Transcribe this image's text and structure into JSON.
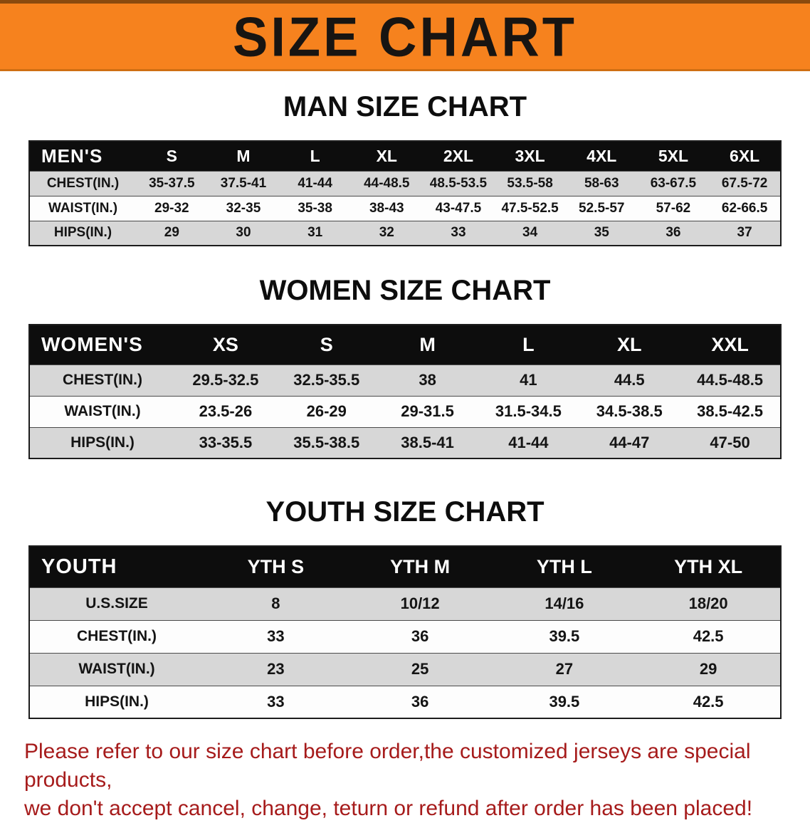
{
  "banner": {
    "title": "SIZE CHART",
    "bg_color": "#f6821e",
    "text_color": "#181512"
  },
  "sections": [
    {
      "id": "men",
      "heading": "MAN SIZE CHART",
      "table": {
        "label": "MEN'S",
        "columns": [
          "S",
          "M",
          "L",
          "XL",
          "2XL",
          "3XL",
          "4XL",
          "5XL",
          "6XL"
        ],
        "rows": [
          {
            "label": "CHEST(IN.)",
            "values": [
              "35-37.5",
              "37.5-41",
              "41-44",
              "44-48.5",
              "48.5-53.5",
              "53.5-58",
              "58-63",
              "63-67.5",
              "67.5-72"
            ]
          },
          {
            "label": "WAIST(IN.)",
            "values": [
              "29-32",
              "32-35",
              "35-38",
              "38-43",
              "43-47.5",
              "47.5-52.5",
              "52.5-57",
              "57-62",
              "62-66.5"
            ]
          },
          {
            "label": "HIPS(IN.)",
            "values": [
              "29",
              "30",
              "31",
              "32",
              "33",
              "34",
              "35",
              "36",
              "37"
            ]
          }
        ]
      }
    },
    {
      "id": "women",
      "heading": "WOMEN SIZE CHART",
      "table": {
        "label": "WOMEN'S",
        "columns": [
          "XS",
          "S",
          "M",
          "L",
          "XL",
          "XXL"
        ],
        "rows": [
          {
            "label": "CHEST(IN.)",
            "values": [
              "29.5-32.5",
              "32.5-35.5",
              "38",
              "41",
              "44.5",
              "44.5-48.5"
            ]
          },
          {
            "label": "WAIST(IN.)",
            "values": [
              "23.5-26",
              "26-29",
              "29-31.5",
              "31.5-34.5",
              "34.5-38.5",
              "38.5-42.5"
            ]
          },
          {
            "label": "HIPS(IN.)",
            "values": [
              "33-35.5",
              "35.5-38.5",
              "38.5-41",
              "41-44",
              "44-47",
              "47-50"
            ]
          }
        ]
      }
    },
    {
      "id": "youth",
      "heading": "YOUTH SIZE CHART",
      "table": {
        "label": "YOUTH",
        "columns": [
          "YTH S",
          "YTH M",
          "YTH L",
          "YTH XL"
        ],
        "rows": [
          {
            "label": "U.S.SIZE",
            "values": [
              "8",
              "10/12",
              "14/16",
              "18/20"
            ]
          },
          {
            "label": "CHEST(IN.)",
            "values": [
              "33",
              "36",
              "39.5",
              "42.5"
            ]
          },
          {
            "label": "WAIST(IN.)",
            "values": [
              "23",
              "25",
              "27",
              "29"
            ]
          },
          {
            "label": "HIPS(IN.)",
            "values": [
              "33",
              "36",
              "39.5",
              "42.5"
            ]
          }
        ]
      }
    }
  ],
  "disclaimer": {
    "lines": [
      "Please refer to our size chart before order,the customized jerseys are special products,",
      "we don't accept cancel, change, teturn or refund after order has been placed!"
    ],
    "color": "#a61b1b"
  },
  "colors": {
    "header_row_bg": "#0d0d0d",
    "header_row_text": "#ffffff",
    "row_alt_bg": "#d7d7d7",
    "row_bg": "#fdfdfd",
    "table_border": "#1c1c1c"
  }
}
